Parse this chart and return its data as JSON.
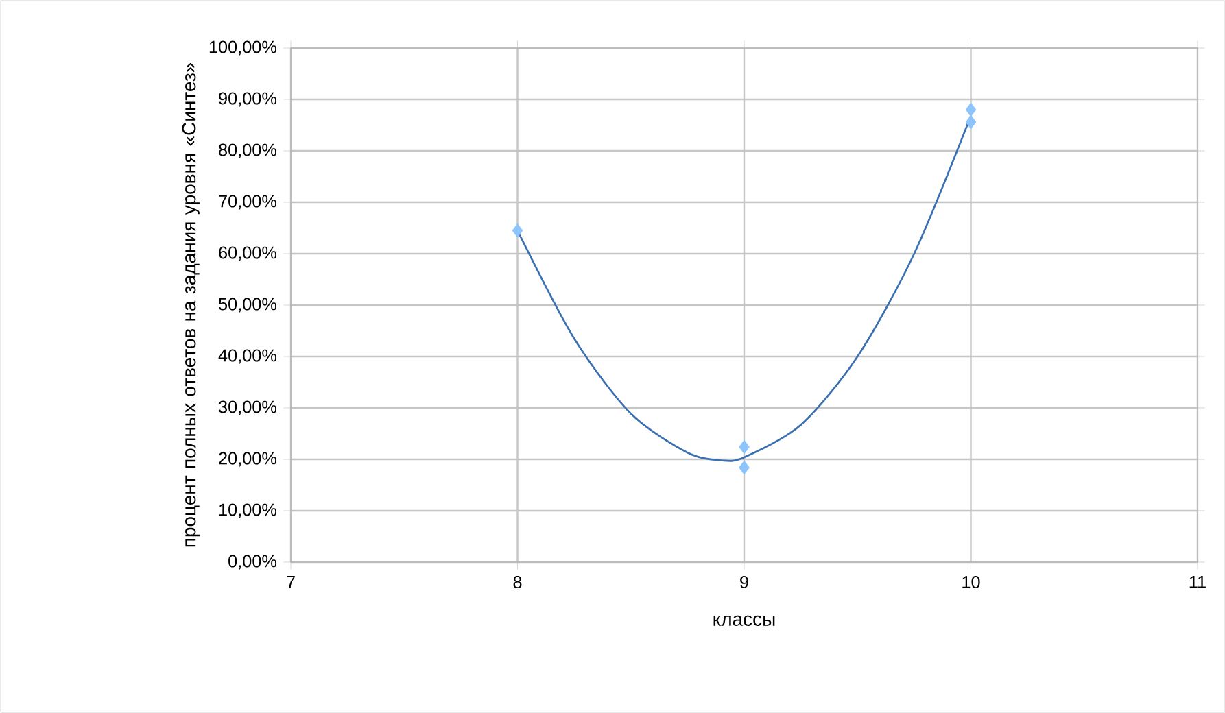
{
  "chart_data": {
    "type": "scatter",
    "xlabel": "классы",
    "ylabel": "процент полных ответов на задания уровня «Синтез»",
    "xlim": [
      7,
      11
    ],
    "xticks": [
      7,
      8,
      9,
      10,
      11
    ],
    "ylim": [
      0,
      100
    ],
    "yticks": [
      {
        "value": 0,
        "label": "0,00%"
      },
      {
        "value": 10,
        "label": "10,00%"
      },
      {
        "value": 20,
        "label": "20,00%"
      },
      {
        "value": 30,
        "label": "30,00%"
      },
      {
        "value": 40,
        "label": "40,00%"
      },
      {
        "value": 50,
        "label": "50,00%"
      },
      {
        "value": 60,
        "label": "60,00%"
      },
      {
        "value": 70,
        "label": "70,00%"
      },
      {
        "value": 80,
        "label": "80,00%"
      },
      {
        "value": 90,
        "label": "90,00%"
      },
      {
        "value": 100,
        "label": "100,00%"
      }
    ],
    "grid": true,
    "series": [
      {
        "type": "line",
        "color": "#3a6fb0",
        "marker": "none",
        "x": [
          8,
          8.25,
          8.5,
          8.75,
          8.9,
          9,
          9.25,
          9.5,
          9.75,
          10
        ],
        "values": [
          64.5,
          43.5,
          28.9,
          21.3,
          19.8,
          20.4,
          26.7,
          40,
          60,
          86.8
        ]
      },
      {
        "color": "#8cc4fb",
        "marker": "diamond",
        "x": [
          8,
          9,
          9,
          10,
          10
        ],
        "values": [
          64.5,
          22.4,
          18.4,
          88,
          85.6
        ]
      }
    ]
  }
}
